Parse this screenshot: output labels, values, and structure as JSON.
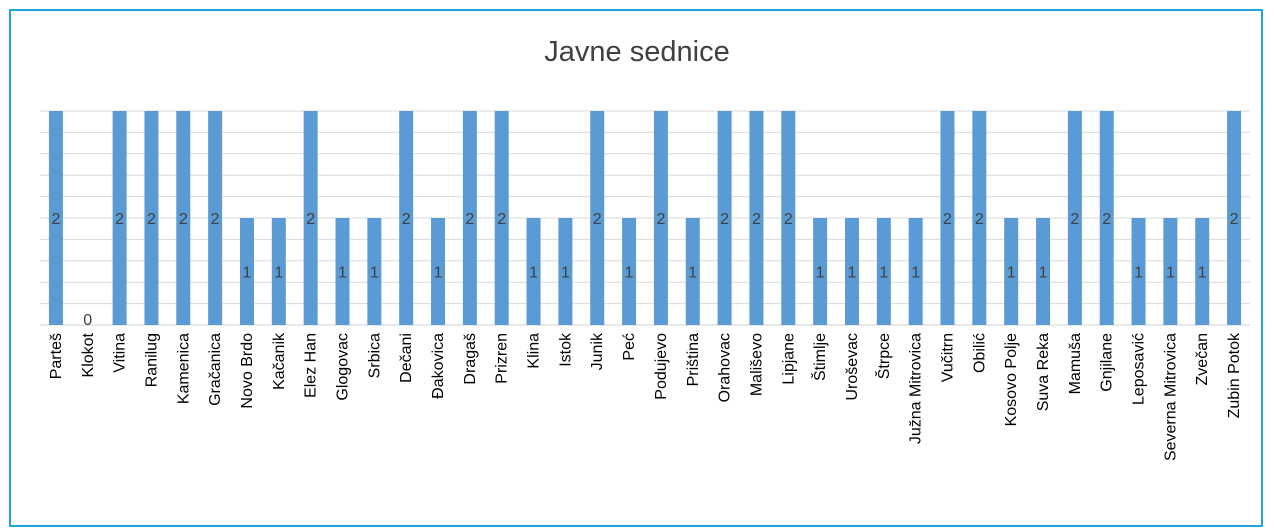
{
  "chart_data": {
    "type": "bar",
    "title": "Javne sednice",
    "xlabel": "",
    "ylabel": "",
    "ylim": [
      0,
      2
    ],
    "grid": true,
    "legend": "none",
    "colors": {
      "bar": "#5B9BD5",
      "grid": "#D9D9D9",
      "frame": "#1FA9DB"
    },
    "categories": [
      "Parteš",
      "Klokot",
      "Vitina",
      "Ranilug",
      "Kamenica",
      "Gračanica",
      "Novo Brdo",
      "Kačanik",
      "Elez Han",
      "Glogovac",
      "Srbica",
      "Dečani",
      "Đakovica",
      "Dragaš",
      "Prizren",
      "Klina",
      "Istok",
      "Junik",
      "Peć",
      "Podujevo",
      "Priština",
      "Orahovac",
      "Mališevo",
      "Lipjane",
      "Štimlje",
      "Uroševac",
      "Štrpce",
      "Južna Mitrovica",
      "Vučitrn",
      "Obilić",
      "Kosovo Polje",
      "Suva Reka",
      "Mamuša",
      "Gnjilane",
      "Leposavić",
      "Severna Mitrovica",
      "Zvečan",
      "Zubin Potok"
    ],
    "values": [
      2,
      0,
      2,
      2,
      2,
      2,
      1,
      1,
      2,
      1,
      1,
      2,
      1,
      2,
      2,
      1,
      1,
      2,
      1,
      2,
      1,
      2,
      2,
      2,
      1,
      1,
      1,
      1,
      2,
      2,
      1,
      1,
      2,
      2,
      1,
      1,
      1,
      2
    ]
  }
}
